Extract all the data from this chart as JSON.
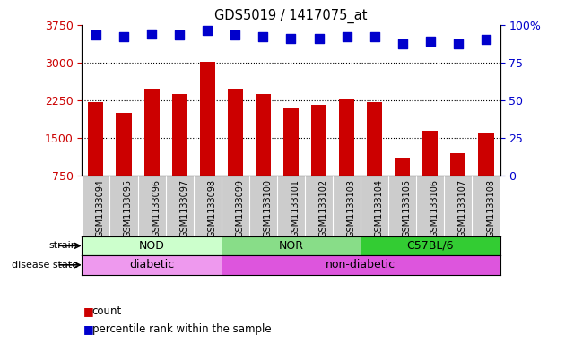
{
  "title": "GDS5019 / 1417075_at",
  "samples": [
    "GSM1133094",
    "GSM1133095",
    "GSM1133096",
    "GSM1133097",
    "GSM1133098",
    "GSM1133099",
    "GSM1133100",
    "GSM1133101",
    "GSM1133102",
    "GSM1133103",
    "GSM1133104",
    "GSM1133105",
    "GSM1133106",
    "GSM1133107",
    "GSM1133108"
  ],
  "counts": [
    2210,
    2000,
    2480,
    2380,
    3020,
    2480,
    2380,
    2080,
    2150,
    2260,
    2210,
    1100,
    1650,
    1200,
    1580
  ],
  "percentiles": [
    93,
    92,
    94,
    93,
    96,
    93,
    92,
    91,
    91,
    92,
    92,
    87,
    89,
    87,
    90
  ],
  "bar_color": "#cc0000",
  "dot_color": "#0000cc",
  "ylim_left": [
    750,
    3750
  ],
  "ylim_right": [
    0,
    100
  ],
  "yticks_left": [
    750,
    1500,
    2250,
    3000,
    3750
  ],
  "yticks_right": [
    0,
    25,
    50,
    75,
    100
  ],
  "grid_values": [
    1500,
    2250,
    3000
  ],
  "strains": [
    {
      "label": "NOD",
      "start": 0,
      "end": 5,
      "color": "#ccffcc"
    },
    {
      "label": "NOR",
      "start": 5,
      "end": 10,
      "color": "#88dd88"
    },
    {
      "label": "C57BL/6",
      "start": 10,
      "end": 15,
      "color": "#33cc33"
    }
  ],
  "disease_states": [
    {
      "label": "diabetic",
      "start": 0,
      "end": 5,
      "color": "#ee99ee"
    },
    {
      "label": "non-diabetic",
      "start": 5,
      "end": 15,
      "color": "#dd55dd"
    }
  ],
  "legend_count_label": "count",
  "legend_percentile_label": "percentile rank within the sample",
  "strain_label": "strain",
  "disease_label": "disease state",
  "bar_width": 0.55,
  "dot_size": 55,
  "tick_bg_color": "#cccccc",
  "tick_label_fontsize": 7.0
}
